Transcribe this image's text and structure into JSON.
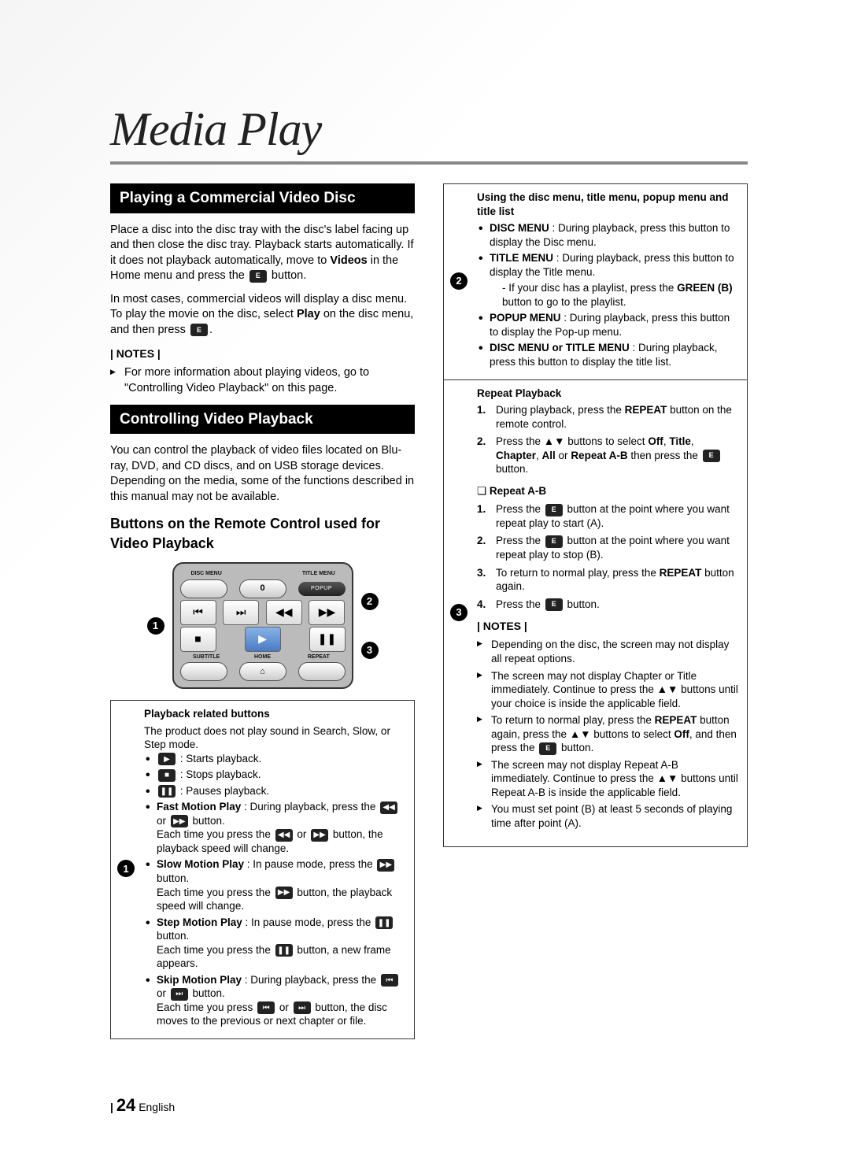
{
  "page": {
    "title": "Media Play",
    "number": "24",
    "language": "English"
  },
  "left": {
    "section1_header": "Playing a Commercial Video Disc",
    "section1_p1a": "Place a disc into the disc tray with the disc's label facing up and then close the disc tray. Playback starts automatically. If it does not playback automatically, move to ",
    "section1_p1b": "Videos",
    "section1_p1c": " in the Home menu and press the ",
    "section1_p1d": " button.",
    "section1_p2a": "In most cases, commercial videos will display a disc menu. To play the movie on the disc, select ",
    "section1_p2b": "Play",
    "section1_p2c": " on the disc menu, and then press ",
    "section1_p2d": ".",
    "notes_label": "| NOTES |",
    "note1": "For more information about playing videos, go to \"Controlling Video Playback\" on this page.",
    "section2_header": "Controlling Video Playback",
    "section2_p1": "You can control the playback of video files located on Blu-ray, DVD, and CD discs, and on USB storage devices. Depending on the media, some of the functions described in this manual may not be available.",
    "subhead1": "Buttons on the Remote Control used for Video Playback",
    "remote": {
      "disc_menu": "DISC MENU",
      "title_menu": "TITLE MENU",
      "zero": "0",
      "popup": "POPUP",
      "subtitle": "SUBTITLE",
      "home": "HOME",
      "repeat": "REPEAT"
    },
    "box1": {
      "title": "Playback related buttons",
      "intro": "The product does not play sound in Search, Slow, or Step mode.",
      "b1": " : Starts playback.",
      "b2": " : Stops playback.",
      "b3": " : Pauses playback.",
      "b4a": "Fast Motion Play",
      "b4b": " : During playback, press the ",
      "b4c": " or ",
      "b4d": " button.",
      "b4e": "Each time you press the ",
      "b4f": " or ",
      "b4g": " button, the playback speed will change.",
      "b5a": "Slow Motion Play",
      "b5b": " : In pause mode, press the ",
      "b5c": " button.",
      "b5d": "Each time you press the ",
      "b5e": " button, the playback speed will change.",
      "b6a": "Step Motion Play",
      "b6b": " : In pause mode, press the ",
      "b6c": " button.",
      "b6d": "Each time you press the ",
      "b6e": " button, a new frame appears.",
      "b7a": "Skip Motion Play",
      "b7b": " : During playback, press the ",
      "b7c": " or ",
      "b7d": " button.",
      "b7e": "Each time you press ",
      "b7f": " or ",
      "b7g": " button, the disc moves to the previous or next chapter or file."
    }
  },
  "right": {
    "box2": {
      "title": "Using the disc menu, title menu, popup menu and title list",
      "i1a": "DISC MENU",
      "i1b": " : During playback, press this button to display the Disc menu.",
      "i2a": "TITLE MENU",
      "i2b": " : During playback, press this button to display the Title menu.",
      "i2sub_a": "If your disc has a playlist, press the ",
      "i2sub_b": "GREEN (B)",
      "i2sub_c": " button to go to the playlist.",
      "i3a": "POPUP MENU",
      "i3b": " : During playback, press this button to display the Pop-up menu.",
      "i4a": "DISC MENU or TITLE MENU",
      "i4b": " : During playback, press this button to display the title list."
    },
    "box3": {
      "title": "Repeat Playback",
      "s1a": "During playback, press the ",
      "s1b": "REPEAT",
      "s1c": " button on the remote control.",
      "s2a": "Press the ▲▼ buttons to select ",
      "s2b": "Off",
      "s2c": ", ",
      "s2d": "Title",
      "s2e": ", ",
      "s2f": "Chapter",
      "s2g": ", ",
      "s2h": "All",
      "s2i": " or ",
      "s2j": "Repeat A-B",
      "s2k": " then press the ",
      "s2l": " button.",
      "repeat_ab_head": "Repeat A-B",
      "r1a": "Press the ",
      "r1b": " button at the point where you want repeat play to start (A).",
      "r2a": "Press the ",
      "r2b": " button at the point where you want repeat play to stop (B).",
      "r3a": "To return to normal play, press the ",
      "r3b": "REPEAT",
      "r3c": " button again.",
      "r4a": "Press the ",
      "r4b": " button.",
      "notes_label": "| NOTES |",
      "n1": "Depending on the disc, the screen may not display all repeat options.",
      "n2": "The screen may not display Chapter or Title immediately. Continue to press the ▲▼ buttons until your choice is inside the applicable field.",
      "n3a": "To return to normal play, press the ",
      "n3b": "REPEAT",
      "n3c": " button again, press the ▲▼ buttons to select ",
      "n3d": "Off",
      "n3e": ", and then press the ",
      "n3f": " button.",
      "n4": "The screen may not display Repeat A-B immediately. Continue to press the ▲▼ buttons until Repeat A-B is inside the applicable field.",
      "n5": "You must set point (B) at least 5 seconds of playing time after point (A)."
    }
  }
}
